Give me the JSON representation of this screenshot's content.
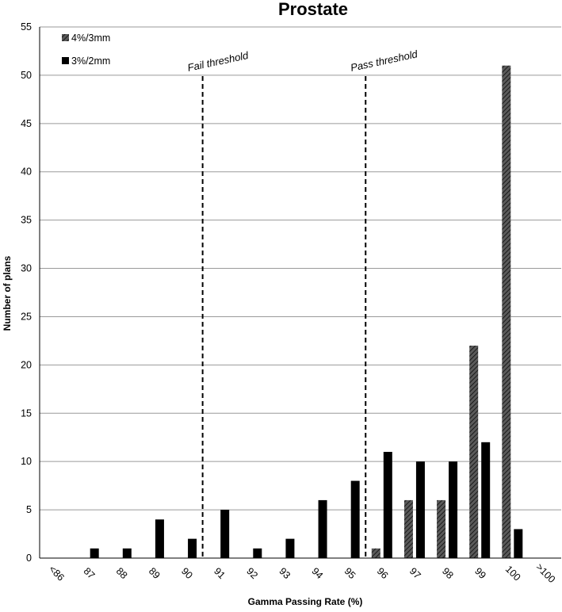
{
  "chart_data": {
    "type": "bar",
    "title": "Prostate",
    "xlabel": "Gamma Passing Rate (%)",
    "ylabel": "Number of plans",
    "categories": [
      "<86",
      "87",
      "88",
      "89",
      "90",
      "91",
      "92",
      "93",
      "94",
      "95",
      "96",
      "97",
      "98",
      "99",
      "100",
      ">100"
    ],
    "series": [
      {
        "name": "4%/3mm",
        "values": [
          0,
          0,
          0,
          0,
          0,
          0,
          0,
          0,
          0,
          0,
          1,
          6,
          6,
          22,
          51,
          0
        ],
        "pattern": "hatched"
      },
      {
        "name": "3%/2mm",
        "values": [
          0,
          1,
          1,
          4,
          2,
          5,
          1,
          2,
          6,
          8,
          11,
          10,
          10,
          12,
          3,
          0
        ],
        "pattern": "solid"
      }
    ],
    "ylim": [
      0,
      55
    ],
    "yticks": [
      0,
      5,
      10,
      15,
      20,
      25,
      30,
      35,
      40,
      45,
      50,
      55
    ],
    "grid": "horizontal",
    "legend_position": "top-left",
    "thresholds": [
      {
        "label": "Fail threshold",
        "between": [
          "90",
          "91"
        ]
      },
      {
        "label": "Pass threshold",
        "between": [
          "95",
          "96"
        ]
      }
    ],
    "colors": {
      "solid": "#000000",
      "hatch_bg": "#5a5a5a",
      "hatch_line": "#1a1a1a",
      "grid": "#9a9a9a"
    }
  }
}
